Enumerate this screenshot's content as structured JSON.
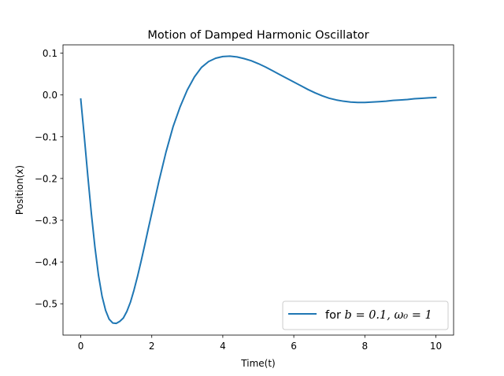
{
  "chart_data": {
    "type": "line",
    "title": "Motion of Damped Harmonic Oscillator",
    "xlabel": "Time(t)",
    "ylabel": "Position(x)",
    "xlim": [
      -0.5,
      10.5
    ],
    "ylim": [
      -0.575,
      0.12
    ],
    "xticks": [
      0,
      2,
      4,
      6,
      8,
      10
    ],
    "xtick_labels": [
      "0",
      "2",
      "4",
      "6",
      "8",
      "10"
    ],
    "yticks": [
      0.1,
      0.0,
      -0.1,
      -0.2,
      -0.3,
      -0.4,
      -0.5
    ],
    "ytick_labels": [
      "0.1",
      "0.0",
      "−0.1",
      "−0.2",
      "−0.3",
      "−0.4",
      "−0.5"
    ],
    "grid": false,
    "legend_position": "lower right",
    "series": [
      {
        "label_prefix": "for ",
        "label_math": "b = 0.1, ω₀ = 1",
        "color": "#1f77b4",
        "x": [
          0.0,
          0.1,
          0.2,
          0.3,
          0.4,
          0.5,
          0.6,
          0.7,
          0.8,
          0.9,
          1.0,
          1.1,
          1.2,
          1.3,
          1.4,
          1.5,
          1.6,
          1.7,
          1.8,
          1.9,
          2.0,
          2.2,
          2.4,
          2.6,
          2.8,
          3.0,
          3.2,
          3.4,
          3.6,
          3.8,
          4.0,
          4.2,
          4.4,
          4.6,
          4.8,
          5.0,
          5.2,
          5.4,
          5.6,
          5.8,
          6.0,
          6.2,
          6.4,
          6.6,
          6.8,
          7.0,
          7.2,
          7.4,
          7.6,
          7.8,
          8.0,
          8.2,
          8.4,
          8.6,
          8.8,
          9.0,
          9.2,
          9.4,
          9.6,
          9.8,
          10.0
        ],
        "y": [
          -0.01,
          -0.1,
          -0.195,
          -0.285,
          -0.365,
          -0.432,
          -0.482,
          -0.516,
          -0.537,
          -0.546,
          -0.547,
          -0.542,
          -0.534,
          -0.518,
          -0.496,
          -0.467,
          -0.434,
          -0.398,
          -0.36,
          -0.321,
          -0.283,
          -0.207,
          -0.137,
          -0.076,
          -0.028,
          0.012,
          0.043,
          0.066,
          0.08,
          0.088,
          0.092,
          0.093,
          0.091,
          0.087,
          0.082,
          0.075,
          0.067,
          0.058,
          0.049,
          0.04,
          0.031,
          0.022,
          0.013,
          0.005,
          -0.002,
          -0.008,
          -0.012,
          -0.015,
          -0.017,
          -0.018,
          -0.018,
          -0.017,
          -0.016,
          -0.015,
          -0.013,
          -0.012,
          -0.011,
          -0.009,
          -0.008,
          -0.007,
          -0.006
        ]
      }
    ]
  }
}
